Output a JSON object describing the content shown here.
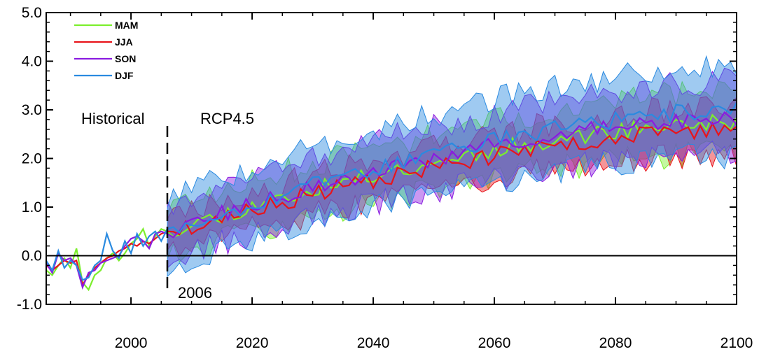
{
  "chart_data": {
    "type": "line",
    "title": "",
    "xlabel": "",
    "ylabel": "",
    "xlim": [
      1986,
      2100
    ],
    "ylim": [
      -1.0,
      5.0
    ],
    "grid": false,
    "legend_position": "top-left",
    "x_ticks": [
      2000,
      2020,
      2040,
      2060,
      2080,
      2100
    ],
    "y_ticks": [
      "-1.0",
      "0.0",
      "1.0",
      "2.0",
      "3.0",
      "4.0",
      "5.0"
    ],
    "reference_line_y": 0.0,
    "scenario_split_year": 2006,
    "annotations": {
      "historical": "Historical",
      "scenario": "RCP4.5",
      "split_label": "2006"
    },
    "historical_years": [
      1986,
      2006
    ],
    "historical": {
      "MAM": [
        -0.3,
        -0.4,
        -0.2,
        -0.05,
        -0.25,
        0.15,
        -0.55,
        -0.7,
        -0.4,
        -0.3,
        -0.05,
        0.05,
        -0.1,
        0.05,
        0.25,
        0.35,
        0.55,
        0.2,
        0.4,
        0.55,
        0.5
      ],
      "JJA": [
        -0.2,
        -0.3,
        -0.2,
        -0.1,
        -0.15,
        -0.1,
        -0.6,
        -0.4,
        -0.25,
        -0.15,
        -0.05,
        0.0,
        0.1,
        0.15,
        0.25,
        0.2,
        0.3,
        0.25,
        0.35,
        0.45,
        0.5
      ],
      "SON": [
        -0.15,
        -0.35,
        0.05,
        -0.1,
        -0.05,
        -0.2,
        -0.65,
        -0.35,
        -0.3,
        -0.15,
        -0.1,
        -0.05,
        0.0,
        0.2,
        0.35,
        0.4,
        0.3,
        0.15,
        0.45,
        0.5,
        0.45
      ],
      "DJF": [
        -0.1,
        -0.3,
        0.1,
        -0.25,
        -0.1,
        -0.2,
        -0.5,
        -0.45,
        -0.2,
        -0.1,
        0.45,
        0.1,
        -0.05,
        0.3,
        0.05,
        0.45,
        0.2,
        0.4,
        0.5,
        0.3,
        0.55
      ]
    },
    "projection_years": [
      2006,
      2100
    ],
    "series": [
      {
        "name": "MAM",
        "color": "#7cee2d",
        "mean_start": 0.5,
        "mean_end": 2.75,
        "spread": 0.65,
        "seed": 11
      },
      {
        "name": "JJA",
        "color": "#e8141b",
        "mean_start": 0.45,
        "mean_end": 2.6,
        "spread": 0.5,
        "seed": 23
      },
      {
        "name": "SON",
        "color": "#8a1be0",
        "mean_start": 0.5,
        "mean_end": 2.85,
        "spread": 0.75,
        "seed": 37
      },
      {
        "name": "DJF",
        "color": "#2a8ae0",
        "mean_start": 0.5,
        "mean_end": 3.0,
        "spread": 0.95,
        "seed": 53
      }
    ],
    "envelope_fill_opacity": 0.45
  }
}
